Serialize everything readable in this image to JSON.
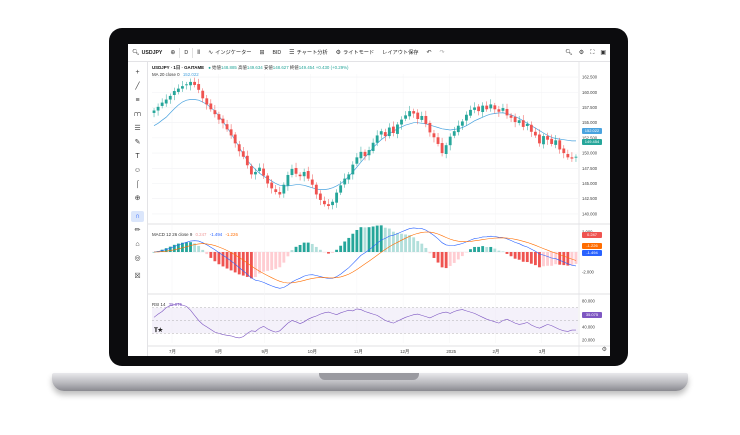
{
  "toolbar": {
    "symbol": "USDJPY",
    "interval": "D",
    "indicators": "インジケーター",
    "bid": "BID",
    "chart_analysis": "チャート分析",
    "light_mode": "ライトモード",
    "save_layout": "レイアウト保存"
  },
  "legend": {
    "title": "USDJPY · 1日 · GAITAME",
    "open_label": "始値",
    "open": "148.885",
    "high_label": "高値",
    "high": "149.634",
    "low_label": "安値",
    "low": "148.627",
    "close_label": "終値",
    "close": "149.454",
    "change": "+0.430 (+0.29%)",
    "ma": "MA 20 close 0",
    "ma_value": "152.022"
  },
  "macd_legend": {
    "label": "MACD 12 26 close 9",
    "v1": "0.247",
    "v2": "-1.494",
    "v3": "-1.226"
  },
  "rsi_legend": {
    "label": "RSI 14",
    "value": "35.075"
  },
  "price_tags": {
    "ma": "152.022",
    "last": "149.454",
    "macd_hist": "0.247",
    "macd_signal": "-1.226",
    "macd_line": "-1.494",
    "rsi": "35.075"
  },
  "price_axis": [
    "162.500",
    "160.000",
    "157.500",
    "155.000",
    "152.500",
    "150.000",
    "147.500",
    "145.000",
    "142.500",
    "140.000"
  ],
  "macd_axis": [
    "2.000",
    "0.000",
    "-2.000"
  ],
  "rsi_axis": [
    "80.000",
    "60.000",
    "40.000",
    "20.000"
  ],
  "time_axis": [
    "7月",
    "8月",
    "9月",
    "10月",
    "11月",
    "12月",
    "2025",
    "2月",
    "3月"
  ],
  "chart_data": {
    "type": "candlestick",
    "title": "USDJPY · 1日 · GAITAME",
    "ylim": [
      139,
      163
    ],
    "closes": [
      157.0,
      157.6,
      158.3,
      158.8,
      159.4,
      160.2,
      160.6,
      161.0,
      161.3,
      161.7,
      161.2,
      160.4,
      159.0,
      158.0,
      157.2,
      156.4,
      155.5,
      154.9,
      153.9,
      152.9,
      151.6,
      150.3,
      149.4,
      148.0,
      146.5,
      146.9,
      147.6,
      146.3,
      145.0,
      144.2,
      143.6,
      143.2,
      144.8,
      146.4,
      147.4,
      146.6,
      146.2,
      146.9,
      145.8,
      144.8,
      143.2,
      142.3,
      141.6,
      141.3,
      142.0,
      143.5,
      144.7,
      145.8,
      146.5,
      148.1,
      149.3,
      150.2,
      149.5,
      150.5,
      151.7,
      152.9,
      153.6,
      152.8,
      154.2,
      153.3,
      154.7,
      155.5,
      156.2,
      156.9,
      156.5,
      155.6,
      156.1,
      154.8,
      153.4,
      152.6,
      151.5,
      150.0,
      151.3,
      152.7,
      153.6,
      154.5,
      155.2,
      156.3,
      157.1,
      157.5,
      156.9,
      157.8,
      157.2,
      158.0,
      157.2,
      156.8,
      157.4,
      156.2,
      155.8,
      155.1,
      155.4,
      154.3,
      154.8,
      153.5,
      152.9,
      151.6,
      152.8,
      152.2,
      151.5,
      152.1,
      150.6,
      150.0,
      149.3,
      149.1,
      149.4
    ],
    "ma20": [
      154.5,
      154.9,
      155.4,
      155.9,
      156.6,
      157.3,
      157.9,
      158.4,
      158.7,
      158.8,
      158.8,
      158.7,
      158.4,
      158.0,
      157.5,
      156.9,
      156.1,
      155.2,
      154.2,
      153.2,
      152.1,
      151.0,
      149.8,
      148.8,
      148.0,
      147.3,
      146.7,
      146.2,
      145.8,
      145.4,
      145.0,
      144.7,
      144.6,
      144.6,
      144.7,
      144.8,
      144.8,
      144.7,
      144.5,
      144.3,
      144.1,
      144.0,
      144.0,
      144.1,
      144.3,
      144.6,
      145.0,
      145.5,
      146.2,
      146.9,
      147.7,
      148.5,
      149.3,
      150.1,
      150.9,
      151.6,
      152.2,
      152.7,
      153.2,
      153.6,
      154.0,
      154.3,
      154.6,
      154.8,
      155.0,
      155.0,
      154.9,
      154.8,
      154.6,
      154.4,
      154.2,
      154.0,
      153.9,
      153.8,
      153.9,
      154.0,
      154.2,
      154.5,
      154.9,
      155.3,
      155.6,
      155.9,
      156.2,
      156.4,
      156.5,
      156.6,
      156.6,
      156.5,
      156.3,
      156.0,
      155.7,
      155.3,
      154.9,
      154.5,
      154.1,
      153.7,
      153.3,
      152.9,
      152.6,
      152.4,
      152.3,
      152.2,
      152.1,
      152.0,
      152.0
    ],
    "rsi": [
      55,
      60,
      64,
      70,
      73,
      75,
      76,
      74,
      72,
      66,
      58,
      50,
      44,
      40,
      36,
      32,
      30,
      28,
      27,
      26,
      24,
      23,
      25,
      30,
      34,
      33,
      38,
      41,
      37,
      34,
      32,
      34,
      40,
      46,
      50,
      48,
      45,
      48,
      52,
      55,
      57,
      60,
      62,
      63,
      61,
      59,
      62,
      64,
      66,
      65,
      68,
      67,
      64,
      62,
      60,
      58,
      54,
      50,
      48,
      46,
      49,
      52,
      55,
      57,
      59,
      60,
      58,
      56,
      54,
      57,
      60,
      62,
      63,
      61,
      64,
      66,
      67,
      65,
      63,
      61,
      58,
      55,
      52,
      50,
      48,
      46,
      50,
      52,
      49,
      46,
      44,
      45,
      47,
      43,
      40,
      38,
      41,
      44,
      42,
      39,
      36,
      34,
      33,
      35,
      35
    ],
    "rsi_levels": [
      70,
      50,
      30
    ],
    "macd_ylim": [
      -3.2,
      2.4
    ]
  },
  "colors": {
    "up": "#26a69a",
    "down": "#ef5350",
    "ma": "#4aa3df",
    "macd": "#2962ff",
    "signal": "#ff6d00",
    "rsi": "#7e57c2"
  }
}
